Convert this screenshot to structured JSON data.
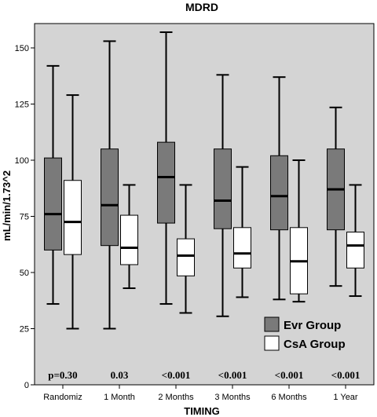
{
  "chart_data": {
    "type": "box",
    "title": "MDRD",
    "xlabel": "TIMING",
    "ylabel": "mL/min/1.73^2",
    "ylim": [
      0,
      160
    ],
    "yticks": [
      0,
      25,
      50,
      75,
      100,
      125,
      150
    ],
    "grid": false,
    "legend_position": "bottom-right",
    "categories": [
      "Randomiz",
      "1 Month",
      "2 Months",
      "3 Months",
      "6 Months",
      "1 Year"
    ],
    "p_values": [
      "p=0.30",
      "0.03",
      "<0.001",
      "<0.001",
      "<0.001",
      "<0.001"
    ],
    "series": [
      {
        "name": "Evr Group",
        "color": "#7a7a7a",
        "boxes": [
          {
            "min": 36,
            "q1": 60,
            "median": 76,
            "q3": 101,
            "max": 142
          },
          {
            "min": 25,
            "q1": 62,
            "median": 80,
            "q3": 105,
            "max": 153
          },
          {
            "min": 36,
            "q1": 72,
            "median": 92.5,
            "q3": 108,
            "max": 157
          },
          {
            "min": 30.5,
            "q1": 69.5,
            "median": 82,
            "q3": 105,
            "max": 138
          },
          {
            "min": 38,
            "q1": 69,
            "median": 84,
            "q3": 102,
            "max": 137
          },
          {
            "min": 44,
            "q1": 69,
            "median": 87,
            "q3": 105,
            "max": 123.5
          }
        ]
      },
      {
        "name": "CsA Group",
        "color": "#ffffff",
        "boxes": [
          {
            "min": 25,
            "q1": 58,
            "median": 72.5,
            "q3": 91,
            "max": 129
          },
          {
            "min": 43,
            "q1": 53.5,
            "median": 61,
            "q3": 75.5,
            "max": 89
          },
          {
            "min": 32,
            "q1": 48.5,
            "median": 57.5,
            "q3": 65,
            "max": 89
          },
          {
            "min": 39,
            "q1": 52,
            "median": 58.5,
            "q3": 70,
            "max": 97
          },
          {
            "min": 37,
            "q1": 40.5,
            "median": 55,
            "q3": 70,
            "max": 100
          },
          {
            "min": 39.5,
            "q1": 52,
            "median": 62,
            "q3": 68,
            "max": 89
          }
        ]
      }
    ]
  }
}
